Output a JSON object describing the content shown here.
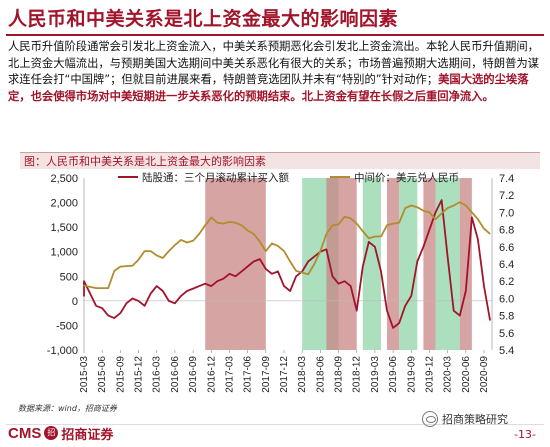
{
  "page": {
    "title": "人民币和中美关系是北上资金最大的影响因素",
    "paragraph": {
      "normal": "人民币升值阶段通常会引发北上资金流入，中美关系预期恶化会引发北上资金流出。本轮人民币升值期间，北上资金大幅流出，与预期美国大选期间中美关系恶化有很大的关系；市场普遍预期大选期间，特朗普为谋求连任会打“中国牌”；但就目前进展来看，特朗普竞选团队并未有“特别的”针对动作；",
      "highlight": "美国大选的尘埃落定，也会使得市场对中美短期进一步关系恶化的预期结束。北上资金有望在长假之后重回净流入。"
    },
    "caption": "图：人民币和中美关系是北上资金最大的影响因素",
    "source": "数据来源：wind，招商证券",
    "logo_cms": "CMS",
    "logo_badge": "招",
    "logo_cn": "招商证券",
    "wechat": "招商策略研究",
    "page_number": "-13-"
  },
  "colors": {
    "accent": "#a1142a",
    "capital_flow": "#a1142a",
    "exchange_rate": "#b08d2e",
    "shade_red": "#c98585",
    "shade_green": "#8fd4a8"
  },
  "chart_data": {
    "type": "line",
    "title": "",
    "xlabel": "",
    "ylabel_left": "",
    "ylabel_right": "",
    "x_ticks": [
      "2015-03",
      "2015-06",
      "2015-09",
      "2015-12",
      "2016-03",
      "2016-06",
      "2016-09",
      "2016-12",
      "2017-03",
      "2017-06",
      "2017-09",
      "2017-12",
      "2018-03",
      "2018-06",
      "2018-09",
      "2018-12",
      "2019-03",
      "2019-06",
      "2019-09",
      "2019-12",
      "2020-03",
      "2020-06",
      "2020-09"
    ],
    "y_left": {
      "ticks": [
        -1000,
        -500,
        0,
        500,
        1000,
        1500,
        2000,
        2500
      ],
      "ylim": [
        -1000,
        2500
      ]
    },
    "y_right": {
      "ticks": [
        5.4,
        5.6,
        5.8,
        6.0,
        6.2,
        6.4,
        6.6,
        6.8,
        7.0,
        7.2,
        7.4
      ],
      "ylim": [
        5.4,
        7.4
      ]
    },
    "legend": [
      "陆股通：三个月滚动累计买入额",
      "中间价：美元兑人民币"
    ],
    "legend_placement": "top",
    "shaded_periods": [
      {
        "color": "red",
        "start": "2016-11",
        "end": "2017-09"
      },
      {
        "color": "green",
        "start": "2018-03",
        "end": "2018-09"
      },
      {
        "color": "red",
        "start": "2018-07",
        "end": "2018-12"
      },
      {
        "color": "green",
        "start": "2019-01",
        "end": "2019-04"
      },
      {
        "color": "red",
        "start": "2019-05",
        "end": "2019-07"
      },
      {
        "color": "green",
        "start": "2019-07",
        "end": "2019-10"
      },
      {
        "color": "red",
        "start": "2019-11",
        "end": "2020-01"
      },
      {
        "color": "green",
        "start": "2020-01",
        "end": "2020-05"
      },
      {
        "color": "red",
        "start": "2020-05",
        "end": "2020-07"
      }
    ],
    "series": [
      {
        "name": "陆股通：三个月滚动累计买入额",
        "axis": "left",
        "points": [
          [
            "2015-01",
            200
          ],
          [
            "2015-02",
            100
          ],
          [
            "2015-03",
            400
          ],
          [
            "2015-04",
            150
          ],
          [
            "2015-05",
            -100
          ],
          [
            "2015-06",
            -150
          ],
          [
            "2015-07",
            -300
          ],
          [
            "2015-08",
            -350
          ],
          [
            "2015-09",
            -250
          ],
          [
            "2015-10",
            -50
          ],
          [
            "2015-11",
            50
          ],
          [
            "2015-12",
            0
          ],
          [
            "2016-01",
            -100
          ],
          [
            "2016-02",
            150
          ],
          [
            "2016-03",
            300
          ],
          [
            "2016-04",
            200
          ],
          [
            "2016-05",
            0
          ],
          [
            "2016-06",
            -50
          ],
          [
            "2016-07",
            100
          ],
          [
            "2016-08",
            200
          ],
          [
            "2016-09",
            250
          ],
          [
            "2016-10",
            300
          ],
          [
            "2016-11",
            350
          ],
          [
            "2016-12",
            300
          ],
          [
            "2017-01",
            400
          ],
          [
            "2017-02",
            450
          ],
          [
            "2017-03",
            550
          ],
          [
            "2017-04",
            500
          ],
          [
            "2017-05",
            600
          ],
          [
            "2017-06",
            700
          ],
          [
            "2017-07",
            800
          ],
          [
            "2017-08",
            850
          ],
          [
            "2017-09",
            650
          ],
          [
            "2017-10",
            550
          ],
          [
            "2017-11",
            600
          ],
          [
            "2017-12",
            300
          ],
          [
            "2018-01",
            200
          ],
          [
            "2018-02",
            500
          ],
          [
            "2018-03",
            600
          ],
          [
            "2018-04",
            800
          ],
          [
            "2018-05",
            900
          ],
          [
            "2018-06",
            1000
          ],
          [
            "2018-07",
            1050
          ],
          [
            "2018-08",
            500
          ],
          [
            "2018-09",
            350
          ],
          [
            "2018-10",
            400
          ],
          [
            "2018-11",
            300
          ],
          [
            "2018-12",
            -200
          ],
          [
            "2019-01",
            700
          ],
          [
            "2019-02",
            1200
          ],
          [
            "2019-03",
            1100
          ],
          [
            "2019-04",
            600
          ],
          [
            "2019-05",
            -200
          ],
          [
            "2019-06",
            -550
          ],
          [
            "2019-07",
            -450
          ],
          [
            "2019-08",
            -100
          ],
          [
            "2019-09",
            100
          ],
          [
            "2019-10",
            800
          ],
          [
            "2019-11",
            1100
          ],
          [
            "2019-12",
            1450
          ],
          [
            "2020-01",
            1800
          ],
          [
            "2020-02",
            2050
          ],
          [
            "2020-03",
            900
          ],
          [
            "2020-04",
            -200
          ],
          [
            "2020-05",
            -300
          ],
          [
            "2020-06",
            200
          ],
          [
            "2020-07",
            1700
          ],
          [
            "2020-08",
            1250
          ],
          [
            "2020-09",
            300
          ],
          [
            "2020-10",
            -400
          ]
        ]
      },
      {
        "name": "中间价：美元兑人民币",
        "axis": "right",
        "points": [
          [
            "2015-01",
            6.14
          ],
          [
            "2015-03",
            6.15
          ],
          [
            "2015-05",
            6.12
          ],
          [
            "2015-07",
            6.12
          ],
          [
            "2015-08",
            6.32
          ],
          [
            "2015-09",
            6.37
          ],
          [
            "2015-11",
            6.38
          ],
          [
            "2015-12",
            6.45
          ],
          [
            "2016-01",
            6.55
          ],
          [
            "2016-02",
            6.55
          ],
          [
            "2016-03",
            6.5
          ],
          [
            "2016-04",
            6.47
          ],
          [
            "2016-05",
            6.55
          ],
          [
            "2016-06",
            6.62
          ],
          [
            "2016-07",
            6.68
          ],
          [
            "2016-08",
            6.65
          ],
          [
            "2016-09",
            6.67
          ],
          [
            "2016-10",
            6.75
          ],
          [
            "2016-11",
            6.85
          ],
          [
            "2016-12",
            6.94
          ],
          [
            "2017-01",
            6.88
          ],
          [
            "2017-02",
            6.87
          ],
          [
            "2017-03",
            6.89
          ],
          [
            "2017-04",
            6.88
          ],
          [
            "2017-05",
            6.85
          ],
          [
            "2017-06",
            6.79
          ],
          [
            "2017-07",
            6.75
          ],
          [
            "2017-08",
            6.66
          ],
          [
            "2017-09",
            6.55
          ],
          [
            "2017-10",
            6.64
          ],
          [
            "2017-11",
            6.61
          ],
          [
            "2017-12",
            6.55
          ],
          [
            "2018-01",
            6.43
          ],
          [
            "2018-02",
            6.32
          ],
          [
            "2018-03",
            6.3
          ],
          [
            "2018-04",
            6.28
          ],
          [
            "2018-05",
            6.4
          ],
          [
            "2018-06",
            6.55
          ],
          [
            "2018-07",
            6.75
          ],
          [
            "2018-08",
            6.85
          ],
          [
            "2018-09",
            6.86
          ],
          [
            "2018-10",
            6.95
          ],
          [
            "2018-11",
            6.93
          ],
          [
            "2018-12",
            6.87
          ],
          [
            "2019-01",
            6.78
          ],
          [
            "2019-02",
            6.7
          ],
          [
            "2019-03",
            6.72
          ],
          [
            "2019-04",
            6.72
          ],
          [
            "2019-05",
            6.85
          ],
          [
            "2019-06",
            6.87
          ],
          [
            "2019-07",
            6.88
          ],
          [
            "2019-08",
            7.05
          ],
          [
            "2019-09",
            7.08
          ],
          [
            "2019-10",
            7.06
          ],
          [
            "2019-11",
            7.02
          ],
          [
            "2019-12",
            7.0
          ],
          [
            "2020-01",
            6.92
          ],
          [
            "2020-02",
            6.99
          ],
          [
            "2020-03",
            7.05
          ],
          [
            "2020-04",
            7.08
          ],
          [
            "2020-05",
            7.12
          ],
          [
            "2020-06",
            7.08
          ],
          [
            "2020-07",
            7.0
          ],
          [
            "2020-08",
            6.92
          ],
          [
            "2020-09",
            6.81
          ],
          [
            "2020-10",
            6.75
          ]
        ]
      }
    ]
  }
}
